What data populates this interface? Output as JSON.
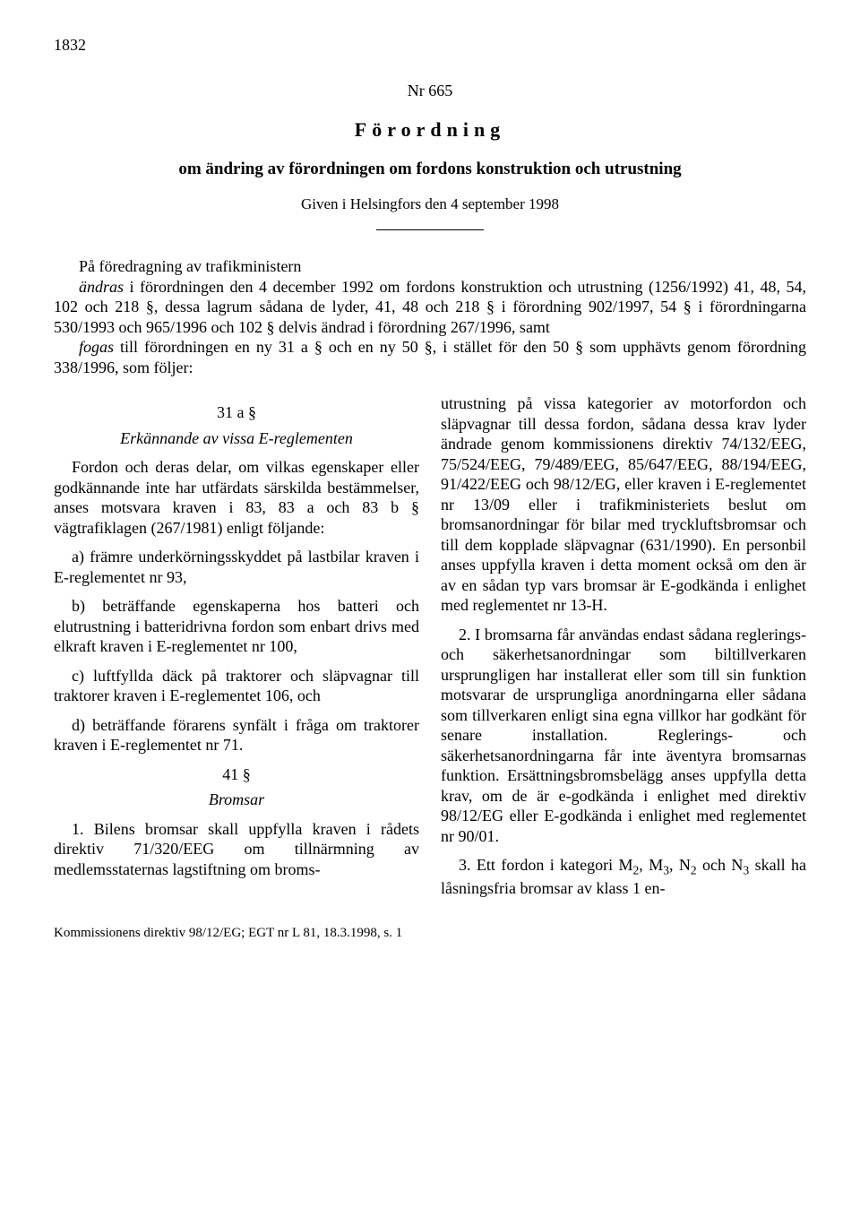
{
  "page_number": "1832",
  "doc_number": "Nr 665",
  "title_type": "Förordning",
  "subtitle": "om ändring av förordningen om fordons konstruktion och utrustning",
  "given": "Given i Helsingfors den 4 september 1998",
  "preamble_p1_a": "På föredragning av trafikministern",
  "preamble_p1_b": "ändras",
  "preamble_p1_c": " i förordningen den 4 december 1992 om fordons konstruktion och utrustning (1256/1992) 41, 48, 54, 102 och 218 §, dessa lagrum sådana de lyder, 41, 48 och 218 § i förordning 902/1997, 54 § i förordningarna 530/1993 och 965/1996 och 102 § delvis ändrad i förordning 267/1996, samt",
  "preamble_p2_a": "fogas",
  "preamble_p2_b": " till förordningen en ny 31 a § och en ny 50 §, i stället för den 50 § som upphävts genom förordning 338/1996, som följer:",
  "sec31a_head": "31 a §",
  "sec31a_sub": "Erkännande av vissa E-reglementen",
  "sec31a_p1": "Fordon och deras delar, om vilkas egenskaper eller godkännande inte har utfärdats särskilda bestämmelser, anses motsvara kraven i 83, 83 a och 83 b § vägtrafiklagen (267/1981) enligt följande:",
  "sec31a_a": "a) främre underkörningsskyddet på lastbilar kraven i E-reglementet nr 93,",
  "sec31a_b": "b) beträffande egenskaperna hos batteri och elutrustning i batteridrivna fordon som enbart drivs med elkraft kraven i E-reglementet nr 100,",
  "sec31a_c": "c) luftfyllda däck på traktorer och släpvagnar till traktorer kraven i E-reglementet 106, och",
  "sec31a_d": "d) beträffande förarens synfält i fråga om traktorer kraven i E-reglementet nr 71.",
  "sec41_head": "41 §",
  "sec41_sub": "Bromsar",
  "sec41_p1_num": "1. ",
  "sec41_p1": "Bilens bromsar skall uppfylla kraven i rådets direktiv 71/320/EEG om tillnärmning av medlemsstaternas lagstiftning om broms-",
  "col2_p1": "utrustning på vissa kategorier av motorfordon och släpvagnar till dessa fordon, sådana dessa krav lyder ändrade genom kommissionens direktiv 74/132/EEG, 75/524/EEG, 79/489/EEG, 85/647/EEG, 88/194/EEG, 91/422/EEG och 98/12/EG, eller kraven i E-reglementet nr 13/09 eller i trafikministeriets beslut om bromsanordningar för bilar med tryckluftsbromsar och till dem kopplade släpvagnar (631/1990). En personbil anses uppfylla kraven i detta moment också om den är av en sådan typ vars bromsar är E-godkända i enlighet med reglementet nr 13-H.",
  "col2_p2_num": "2. ",
  "col2_p2": "I bromsarna får användas endast sådana reglerings- och säkerhetsanordningar som biltillverkaren ursprungligen har installerat eller som till sin funktion motsvarar de ursprungliga anordningarna eller sådana som tillverkaren enligt sina egna villkor har godkänt för senare installation. Reglerings- och säkerhetsanordningarna får inte äventyra bromsarnas funktion. Ersättningsbromsbelägg anses uppfylla detta krav, om de är e-godkända i enlighet med direktiv 98/12/EG eller E-godkända i enlighet med reglementet nr 90/01.",
  "col2_p3_num": "3. ",
  "col2_p3_a": "Ett fordon i kategori M",
  "col2_p3_b": ", M",
  "col2_p3_c": ", N",
  "col2_p3_d": " och N",
  "col2_p3_e": " skall ha låsningsfria bromsar av klass 1 en-",
  "sub2": "2",
  "sub3": "3",
  "footnote": "Kommissionens direktiv 98/12/EG; EGT nr L 81, 18.3.1998, s. 1"
}
